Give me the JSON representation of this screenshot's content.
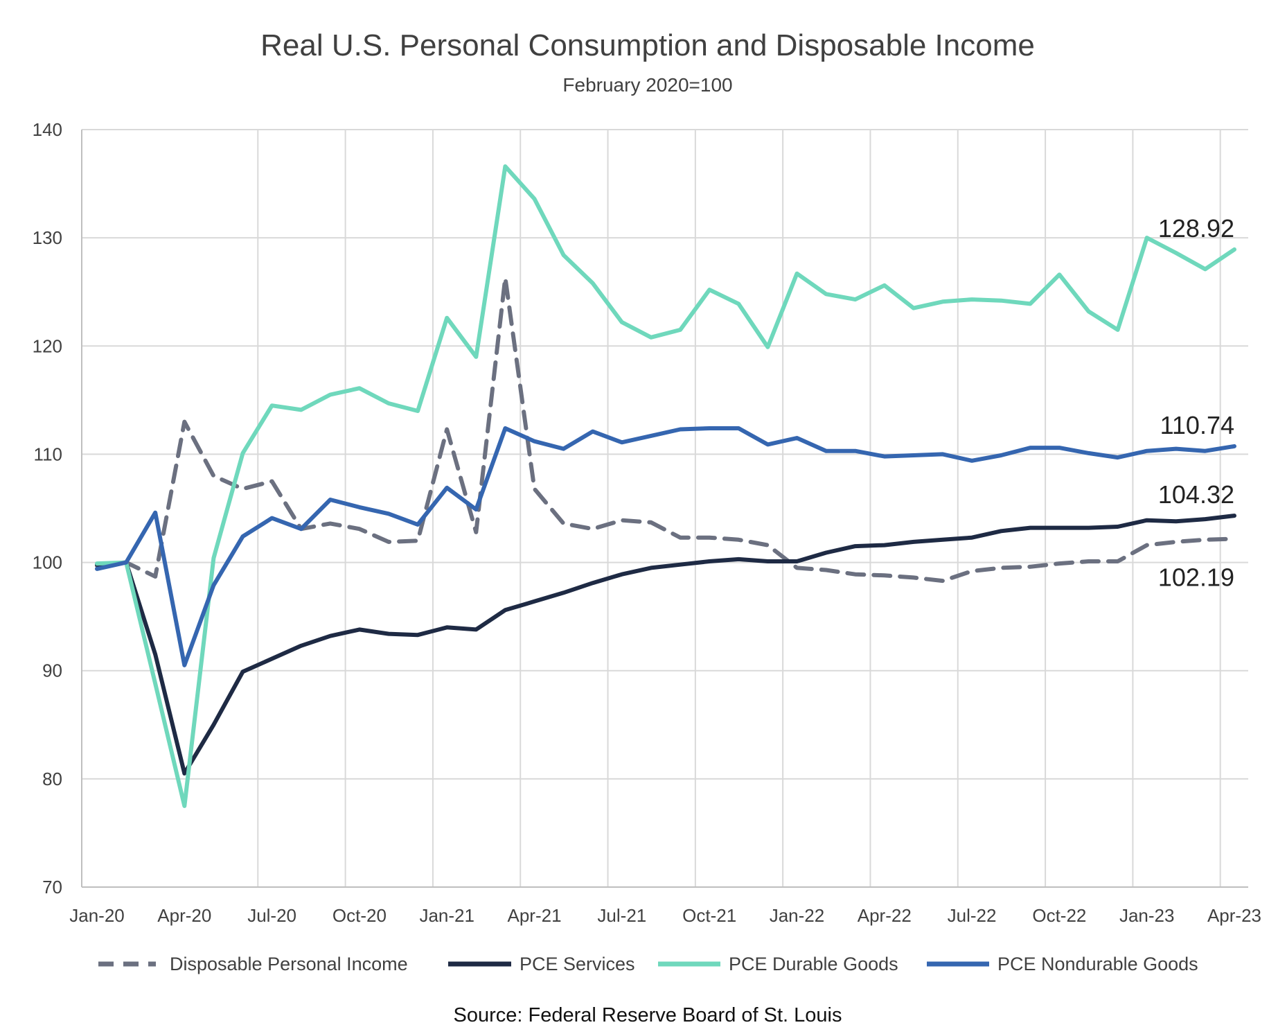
{
  "chart_data": {
    "type": "line",
    "title": "Real U.S. Personal Consumption and Disposable Income",
    "subtitle": "February 2020=100",
    "source": "Source: Federal Reserve Board of St. Louis",
    "xlabel": "",
    "ylabel": "",
    "ylim": [
      70,
      140
    ],
    "yticks": [
      70,
      80,
      90,
      100,
      110,
      120,
      130,
      140
    ],
    "grid": true,
    "legend_position": "bottom",
    "x_tick_labels": [
      "Jan-20",
      "Apr-20",
      "Jul-20",
      "Oct-20",
      "Jan-21",
      "Apr-21",
      "Jul-21",
      "Oct-21",
      "Jan-22",
      "Apr-22",
      "Jul-22",
      "Oct-22",
      "Jan-23",
      "Apr-23"
    ],
    "x_tick_indices": [
      0,
      3,
      6,
      9,
      12,
      15,
      18,
      21,
      24,
      27,
      30,
      33,
      36,
      39
    ],
    "categories": [
      "Jan-20",
      "Feb-20",
      "Mar-20",
      "Apr-20",
      "May-20",
      "Jun-20",
      "Jul-20",
      "Aug-20",
      "Sep-20",
      "Oct-20",
      "Nov-20",
      "Dec-20",
      "Jan-21",
      "Feb-21",
      "Mar-21",
      "Apr-21",
      "May-21",
      "Jun-21",
      "Jul-21",
      "Aug-21",
      "Sep-21",
      "Oct-21",
      "Nov-21",
      "Dec-21",
      "Jan-22",
      "Feb-22",
      "Mar-22",
      "Apr-22",
      "May-22",
      "Jun-22",
      "Jul-22",
      "Aug-22",
      "Sep-22",
      "Oct-22",
      "Nov-22",
      "Dec-22",
      "Jan-23",
      "Feb-23",
      "Mar-23",
      "Apr-23"
    ],
    "series": [
      {
        "name": "Disposable Personal Income",
        "color": "#6b7080",
        "dash": true,
        "values": [
          99.7,
          100,
          98.7,
          113,
          108,
          106.8,
          107.5,
          103.1,
          103.6,
          103.1,
          101.9,
          102.0,
          112.3,
          102.8,
          126.3,
          106.8,
          103.6,
          103.1,
          103.9,
          103.7,
          102.3,
          102.3,
          102.1,
          101.6,
          99.5,
          99.3,
          98.9,
          98.8,
          98.6,
          98.3,
          99.2,
          99.5,
          99.6,
          99.9,
          100.1,
          100.1,
          101.6,
          101.9,
          102.1,
          102.19
        ]
      },
      {
        "name": "PCE Services",
        "color": "#1e2a44",
        "dash": false,
        "values": [
          99.8,
          100,
          91.5,
          80.5,
          85,
          89.9,
          91.1,
          92.3,
          93.2,
          93.8,
          93.4,
          93.3,
          94.0,
          93.8,
          95.6,
          96.4,
          97.2,
          98.1,
          98.9,
          99.5,
          99.8,
          100.1,
          100.3,
          100.1,
          100.1,
          100.9,
          101.5,
          101.6,
          101.9,
          102.1,
          102.3,
          102.9,
          103.2,
          103.2,
          103.2,
          103.3,
          103.9,
          103.8,
          104.0,
          104.32
        ]
      },
      {
        "name": "PCE Durable Goods",
        "color": "#6fd8bc",
        "dash": false,
        "values": [
          99.9,
          100,
          88.8,
          77.5,
          100.4,
          110.1,
          114.5,
          114.1,
          115.5,
          116.1,
          114.7,
          114.0,
          122.6,
          119.0,
          136.6,
          133.6,
          128.4,
          125.8,
          122.2,
          120.8,
          121.5,
          125.2,
          123.9,
          119.9,
          126.7,
          124.8,
          124.3,
          125.6,
          123.5,
          124.1,
          124.3,
          124.2,
          123.9,
          126.6,
          123.2,
          121.5,
          130.0,
          128.6,
          127.1,
          128.92
        ]
      },
      {
        "name": "PCE Nondurable Goods",
        "color": "#3566b0",
        "dash": false,
        "values": [
          99.4,
          100,
          104.6,
          90.5,
          97.9,
          102.4,
          104.1,
          103.1,
          105.8,
          105.1,
          104.5,
          103.5,
          106.9,
          104.9,
          112.4,
          111.2,
          110.5,
          112.1,
          111.1,
          111.7,
          112.3,
          112.4,
          112.4,
          110.9,
          111.5,
          110.3,
          110.3,
          109.8,
          109.9,
          110.0,
          109.4,
          109.9,
          110.6,
          110.6,
          110.1,
          109.7,
          110.3,
          110.5,
          110.3,
          110.74
        ]
      }
    ],
    "end_labels": [
      "128.92",
      "110.74",
      "104.32",
      "102.19"
    ]
  }
}
